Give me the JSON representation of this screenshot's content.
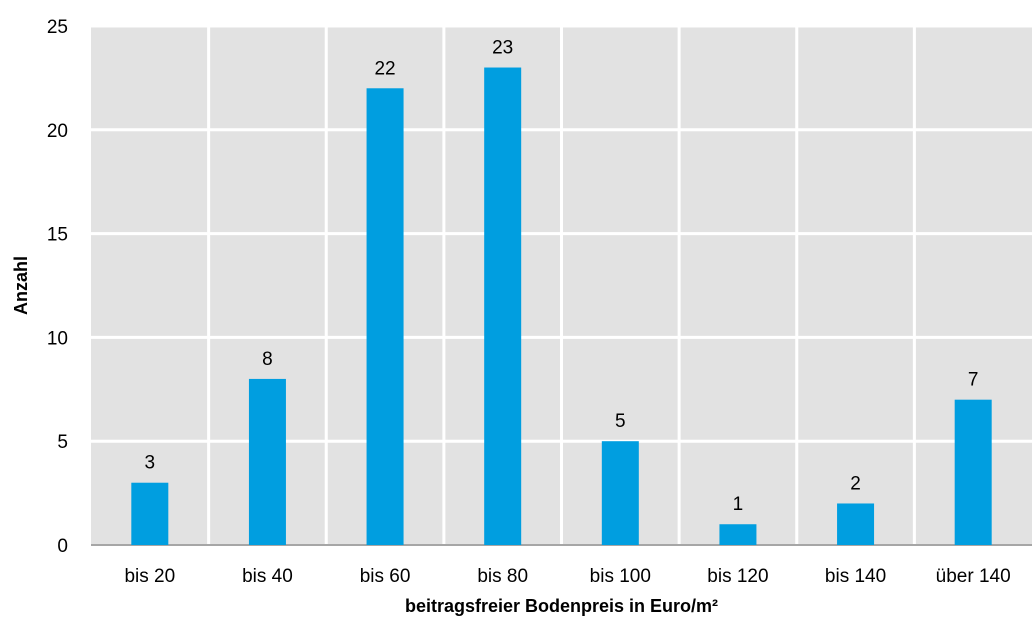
{
  "chart_data": {
    "type": "bar",
    "title": "",
    "xlabel": "beitragsfreier Bodenpreis in Euro/m²",
    "ylabel": "Anzahl",
    "categories": [
      "bis 20",
      "bis 40",
      "bis 60",
      "bis 80",
      "bis 100",
      "bis 120",
      "bis 140",
      "über 140"
    ],
    "values": [
      3,
      8,
      22,
      23,
      5,
      1,
      2,
      7
    ],
    "ylim": [
      0,
      25
    ],
    "yticks": [
      0,
      5,
      10,
      15,
      20,
      25
    ],
    "grid": true,
    "legend": "none",
    "data_labels": true,
    "colors": {
      "bar": "#009ee0",
      "plot_background": "#e2e2e2",
      "grid": "#ffffff",
      "axis": "#a6a6a6",
      "text": "#000000"
    }
  }
}
